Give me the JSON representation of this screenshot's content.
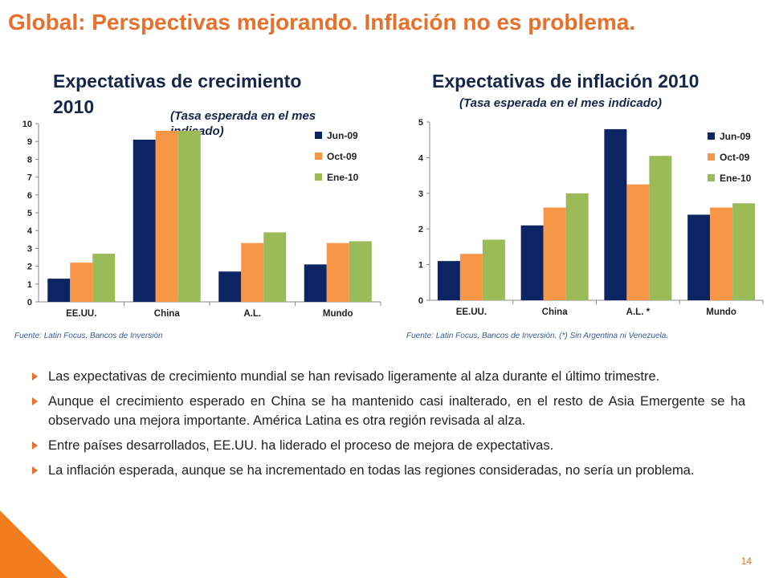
{
  "slide": {
    "title": "Global: Perspectivas mejorando. Inflación no es problema.",
    "page_number": "14",
    "bullets": [
      "Las expectativas de crecimiento mundial se han revisado ligeramente al alza durante el último trimestre.",
      "Aunque el crecimiento esperado en China se ha mantenido casi inalterado, en el resto de Asia Emergente se ha observado una mejora importante. América Latina es otra región revisada al alza.",
      "Entre países desarrollados, EE.UU. ha liderado el proceso de mejora de expectativas.",
      "La inflación esperada, aunque se ha incrementado en todas las regiones consideradas, no sería un problema."
    ],
    "colors": {
      "accent": "#e8702a",
      "title_dark": "#16254a"
    }
  },
  "chart_data": [
    {
      "type": "bar",
      "title": "Expectativas de crecimiento 2010",
      "title_line1": "Expectativas de crecimiento",
      "title_line2": "2010",
      "subtitle_line1": "(Tasa esperada en el mes",
      "subtitle_line2": "indicado)",
      "categories": [
        "EE.UU.",
        "China",
        "A.L.",
        "Mundo"
      ],
      "series": [
        {
          "name": "Jun-09",
          "color": "#0d2462",
          "values": [
            1.3,
            9.1,
            1.7,
            2.1
          ]
        },
        {
          "name": "Oct-09",
          "color": "#f79646",
          "values": [
            2.2,
            9.6,
            3.3,
            3.3
          ]
        },
        {
          "name": "Ene-10",
          "color": "#9bbb59",
          "values": [
            2.7,
            9.6,
            3.9,
            3.4
          ]
        }
      ],
      "ylim": [
        0,
        10
      ],
      "yticks": [
        0,
        1,
        2,
        3,
        4,
        5,
        6,
        7,
        8,
        9,
        10
      ],
      "legend": "top-right",
      "grid": false,
      "source": "Fuente: Latin Focus, Bancos de Inversión"
    },
    {
      "type": "bar",
      "title": "Expectativas de inflación 2010",
      "subtitle": "(Tasa esperada en el mes indicado)",
      "categories": [
        "EE.UU.",
        "China",
        "A.L. *",
        "Mundo"
      ],
      "series": [
        {
          "name": "Jun-09",
          "color": "#0d2462",
          "values": [
            1.1,
            2.1,
            4.8,
            2.4
          ]
        },
        {
          "name": "Oct-09",
          "color": "#f79646",
          "values": [
            1.3,
            2.6,
            3.25,
            2.6
          ]
        },
        {
          "name": "Ene-10",
          "color": "#9bbb59",
          "values": [
            1.7,
            3.0,
            4.05,
            2.72
          ]
        }
      ],
      "ylim": [
        0,
        5
      ],
      "yticks": [
        0,
        1,
        2,
        3,
        4,
        5
      ],
      "legend": "top-right",
      "grid": false,
      "source": "Fuente: Latin Focus, Bancos de Inversión. (*) Sin Argentina ni Venezuela."
    }
  ]
}
